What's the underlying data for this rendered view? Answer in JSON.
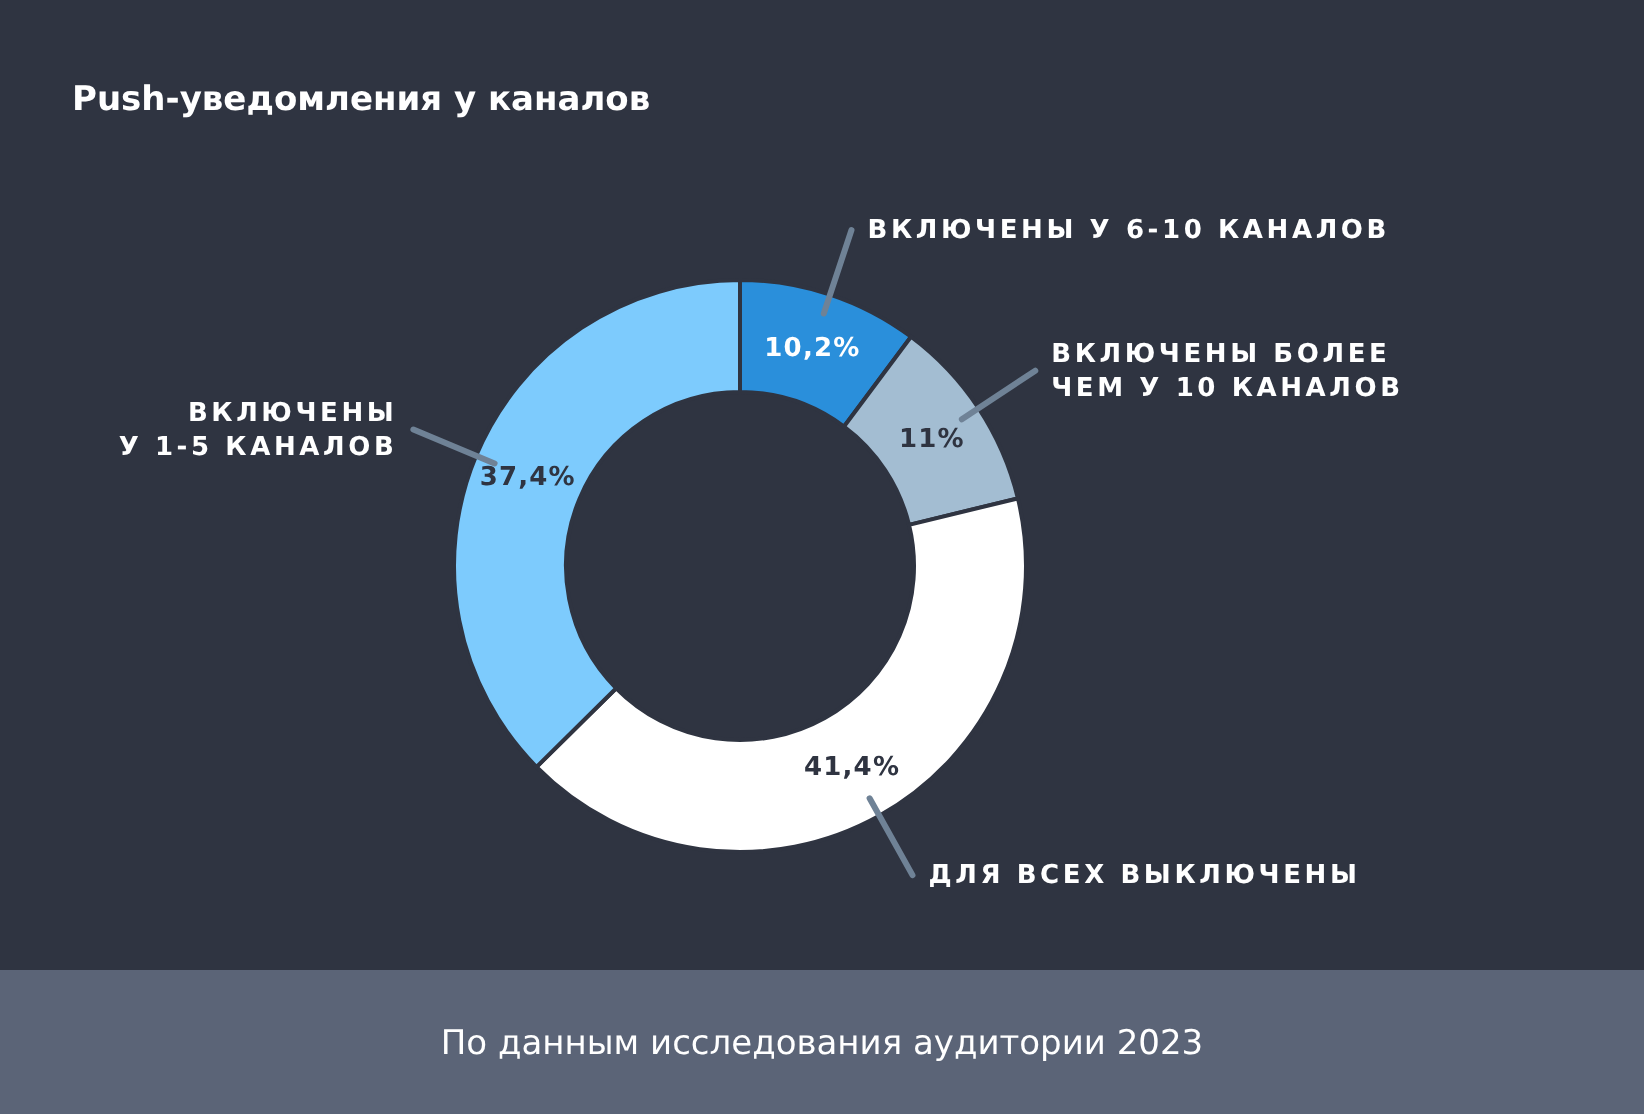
{
  "chart_data": {
    "type": "donut",
    "title": "Push-уведомления у каналов",
    "categories": [
      "ВКЛЮЧЕНЫ У 6-10 КАНАЛОВ",
      "ВКЛЮЧЕНЫ БОЛЕЕ ЧЕМ У 10 КАНАЛОВ",
      "ДЛЯ ВСЕХ ВЫКЛЮЧЕНЫ",
      "ВКЛЮЧЕНЫ У 1-5 КАНАЛОВ"
    ],
    "values": [
      10.2,
      11,
      41.4,
      37.4
    ],
    "colors": [
      "#2a8fdb",
      "#a3bdd2",
      "#ffffff",
      "#7dcbfd"
    ],
    "value_labels": [
      "10,2%",
      "11%",
      "41,4%",
      "37,4%"
    ],
    "annotations": [
      "По данным исследования аудитории 2023"
    ]
  }
}
